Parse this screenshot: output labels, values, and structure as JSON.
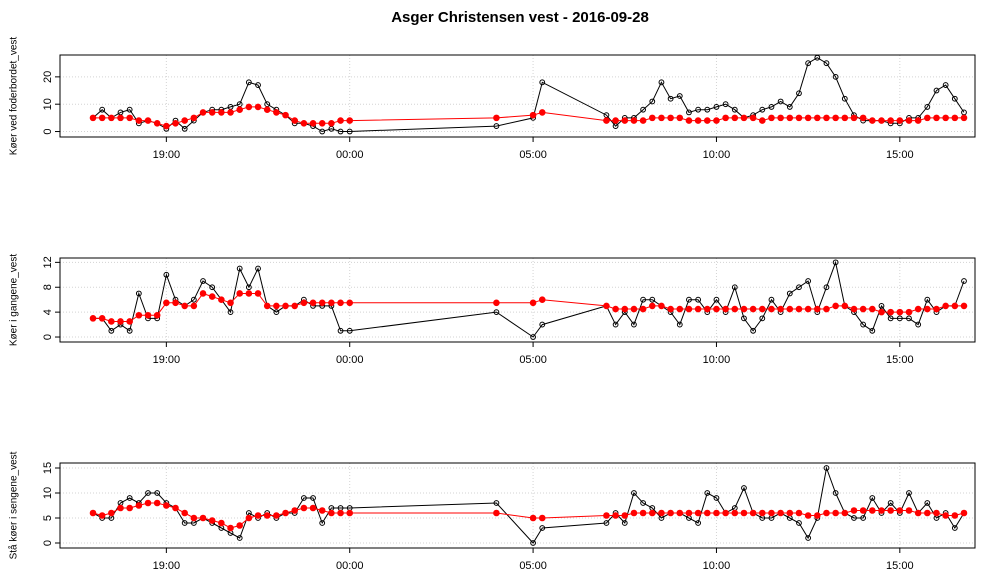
{
  "title": "Asger Christensen vest - 2016-09-28",
  "chart_data": [
    {
      "type": "line",
      "ylabel": "Køer ved foderbordet_vest",
      "x": [
        17,
        17.25,
        17.5,
        17.75,
        18,
        18.25,
        18.5,
        18.75,
        19,
        19.25,
        19.5,
        19.75,
        20,
        20.25,
        20.5,
        20.75,
        21,
        21.25,
        21.5,
        21.75,
        22,
        22.25,
        22.5,
        22.75,
        23,
        23.25,
        23.5,
        23.75,
        24,
        28,
        29,
        29.25,
        31,
        31.25,
        31.5,
        31.75,
        32,
        32.25,
        32.5,
        32.75,
        33,
        33.25,
        33.5,
        33.75,
        34,
        34.25,
        34.5,
        34.75,
        35,
        35.25,
        35.5,
        35.75,
        36,
        36.25,
        36.5,
        36.75,
        37,
        37.25,
        37.5,
        37.75,
        38,
        38.25,
        38.5,
        38.75,
        39,
        39.25,
        39.5,
        39.75,
        40,
        40.25,
        40.5,
        40.75
      ],
      "xlim": [
        16.1,
        41.05
      ],
      "xticks": [
        {
          "value": 19,
          "label": "19:00"
        },
        {
          "value": 24,
          "label": "00:00"
        },
        {
          "value": 29,
          "label": "05:00"
        },
        {
          "value": 34,
          "label": "10:00"
        },
        {
          "value": 39,
          "label": "15:00"
        }
      ],
      "ylim": [
        -2,
        28
      ],
      "yticks": [
        0,
        10,
        20
      ],
      "grid": true,
      "series": [
        {
          "color": "#000000",
          "marker": "open",
          "values": [
            5,
            8,
            5,
            7,
            8,
            3,
            4,
            3,
            1,
            4,
            1,
            4,
            7,
            8,
            8,
            9,
            10,
            18,
            17,
            10,
            8,
            6,
            3,
            3,
            2,
            0,
            1,
            0,
            0,
            2,
            5,
            18,
            6,
            2,
            5,
            5,
            8,
            11,
            18,
            12,
            13,
            7,
            8,
            8,
            9,
            10,
            8,
            5,
            6,
            8,
            9,
            11,
            9,
            14,
            25,
            27,
            25,
            20,
            12,
            6,
            4,
            4,
            4,
            3,
            3,
            5,
            5,
            9,
            15,
            17,
            12,
            7
          ]
        },
        {
          "color": "#ff0000",
          "marker": "filled",
          "values": [
            5,
            5,
            5,
            5,
            5,
            4,
            4,
            3,
            2,
            3,
            4,
            5,
            7,
            7,
            7,
            7,
            8,
            9,
            9,
            8,
            7,
            6,
            4,
            3,
            3,
            3,
            3,
            4,
            4,
            5,
            6,
            7,
            4,
            4,
            4,
            4,
            4,
            5,
            5,
            5,
            5,
            4,
            4,
            4,
            4,
            5,
            5,
            5,
            5,
            4,
            5,
            5,
            5,
            5,
            5,
            5,
            5,
            5,
            5,
            5,
            5,
            4,
            4,
            4,
            4,
            4,
            4,
            5,
            5,
            5,
            5,
            5
          ]
        }
      ]
    },
    {
      "type": "line",
      "ylabel": "Køer i gangene_vest",
      "x": [
        17,
        17.25,
        17.5,
        17.75,
        18,
        18.25,
        18.5,
        18.75,
        19,
        19.25,
        19.5,
        19.75,
        20,
        20.25,
        20.5,
        20.75,
        21,
        21.25,
        21.5,
        21.75,
        22,
        22.25,
        22.5,
        22.75,
        23,
        23.25,
        23.5,
        23.75,
        24,
        28,
        29,
        29.25,
        31,
        31.25,
        31.5,
        31.75,
        32,
        32.25,
        32.5,
        32.75,
        33,
        33.25,
        33.5,
        33.75,
        34,
        34.25,
        34.5,
        34.75,
        35,
        35.25,
        35.5,
        35.75,
        36,
        36.25,
        36.5,
        36.75,
        37,
        37.25,
        37.5,
        37.75,
        38,
        38.25,
        38.5,
        38.75,
        39,
        39.25,
        39.5,
        39.75,
        40,
        40.25,
        40.5,
        40.75
      ],
      "xlim": [
        16.1,
        41.05
      ],
      "xticks": [
        {
          "value": 19,
          "label": "19:00"
        },
        {
          "value": 24,
          "label": "00:00"
        },
        {
          "value": 29,
          "label": "05:00"
        },
        {
          "value": 34,
          "label": "10:00"
        },
        {
          "value": 39,
          "label": "15:00"
        }
      ],
      "ylim": [
        -0.8,
        12.7
      ],
      "yticks": [
        0,
        4,
        8,
        12
      ],
      "grid": true,
      "series": [
        {
          "color": "#000000",
          "marker": "open",
          "values": [
            3,
            3,
            1,
            2,
            1,
            7,
            3,
            3,
            10,
            6,
            5,
            6,
            9,
            8,
            6,
            4,
            11,
            8,
            11,
            5,
            4,
            5,
            5,
            6,
            5,
            5,
            5,
            1,
            1,
            4,
            0,
            2,
            5,
            2,
            4,
            2,
            6,
            6,
            5,
            4,
            2,
            6,
            6,
            4,
            6,
            4,
            8,
            3,
            1,
            3,
            6,
            4,
            7,
            8,
            9,
            4,
            8,
            12,
            5,
            4,
            2,
            1,
            5,
            3,
            3,
            3,
            2,
            6,
            4,
            5,
            5,
            9
          ]
        },
        {
          "color": "#ff0000",
          "marker": "filled",
          "values": [
            3,
            3,
            2.5,
            2.5,
            2.5,
            3.5,
            3.5,
            3.5,
            5.5,
            5.5,
            5,
            5,
            7,
            6.5,
            6,
            5.5,
            7,
            7,
            7,
            5,
            5,
            5,
            5,
            5.5,
            5.5,
            5.5,
            5.5,
            5.5,
            5.5,
            5.5,
            5.5,
            6,
            5,
            4.5,
            4.5,
            4.5,
            4.5,
            5,
            5,
            4.5,
            4.5,
            4.5,
            4.5,
            4.5,
            4.5,
            4.5,
            4.5,
            4.5,
            4.5,
            4.5,
            4.5,
            4.5,
            4.5,
            4.5,
            4.5,
            4.5,
            4.5,
            5,
            5,
            4.5,
            4.5,
            4.5,
            4,
            4,
            4,
            4,
            4.5,
            4.5,
            4.5,
            5,
            5,
            5
          ]
        }
      ]
    },
    {
      "type": "line",
      "ylabel": "Stå køer i sengene_vest",
      "x": [
        17,
        17.25,
        17.5,
        17.75,
        18,
        18.25,
        18.5,
        18.75,
        19,
        19.25,
        19.5,
        19.75,
        20,
        20.25,
        20.5,
        20.75,
        21,
        21.25,
        21.5,
        21.75,
        22,
        22.25,
        22.5,
        22.75,
        23,
        23.25,
        23.5,
        23.75,
        24,
        28,
        29,
        29.25,
        31,
        31.25,
        31.5,
        31.75,
        32,
        32.25,
        32.5,
        32.75,
        33,
        33.25,
        33.5,
        33.75,
        34,
        34.25,
        34.5,
        34.75,
        35,
        35.25,
        35.5,
        35.75,
        36,
        36.25,
        36.5,
        36.75,
        37,
        37.25,
        37.5,
        37.75,
        38,
        38.25,
        38.5,
        38.75,
        39,
        39.25,
        39.5,
        39.75,
        40,
        40.25,
        40.5,
        40.75
      ],
      "xlim": [
        16.1,
        41.05
      ],
      "xticks": [
        {
          "value": 19,
          "label": "19:00"
        },
        {
          "value": 24,
          "label": "00:00"
        },
        {
          "value": 29,
          "label": "05:00"
        },
        {
          "value": 34,
          "label": "10:00"
        },
        {
          "value": 39,
          "label": "15:00"
        }
      ],
      "ylim": [
        -1,
        16
      ],
      "yticks": [
        0,
        5,
        10,
        15
      ],
      "grid": true,
      "series": [
        {
          "color": "#000000",
          "marker": "open",
          "values": [
            6,
            5,
            5,
            8,
            9,
            8,
            10,
            10,
            8,
            7,
            4,
            4,
            5,
            4,
            3,
            2,
            1,
            6,
            5,
            6,
            5,
            6,
            6,
            9,
            9,
            4,
            7,
            7,
            7,
            8,
            0,
            3,
            4,
            6,
            4,
            10,
            8,
            7,
            5,
            6,
            6,
            5,
            4,
            10,
            9,
            6,
            7,
            11,
            6,
            5,
            5,
            6,
            5,
            4,
            1,
            5,
            15,
            10,
            6,
            5,
            5,
            9,
            6,
            8,
            6,
            10,
            6,
            8,
            5,
            6,
            3,
            6
          ]
        },
        {
          "color": "#ff0000",
          "marker": "filled",
          "values": [
            6,
            5.5,
            6,
            7,
            7,
            7.5,
            8,
            8,
            7.5,
            7,
            6,
            5,
            5,
            4.5,
            4,
            3,
            3.5,
            5,
            5.5,
            5.5,
            5.5,
            6,
            6.5,
            7,
            7,
            6.5,
            6,
            6,
            6,
            6,
            5,
            5,
            5.5,
            5.5,
            5.5,
            6,
            6,
            6,
            6,
            6,
            6,
            6,
            6,
            6,
            6,
            6,
            6,
            6,
            6,
            6,
            6,
            6,
            6,
            6,
            5.5,
            5.5,
            6,
            6,
            6,
            6.5,
            6.5,
            6.5,
            6.5,
            6.5,
            6.5,
            6.5,
            6,
            6,
            6,
            5.5,
            5.5,
            6
          ]
        }
      ]
    }
  ]
}
